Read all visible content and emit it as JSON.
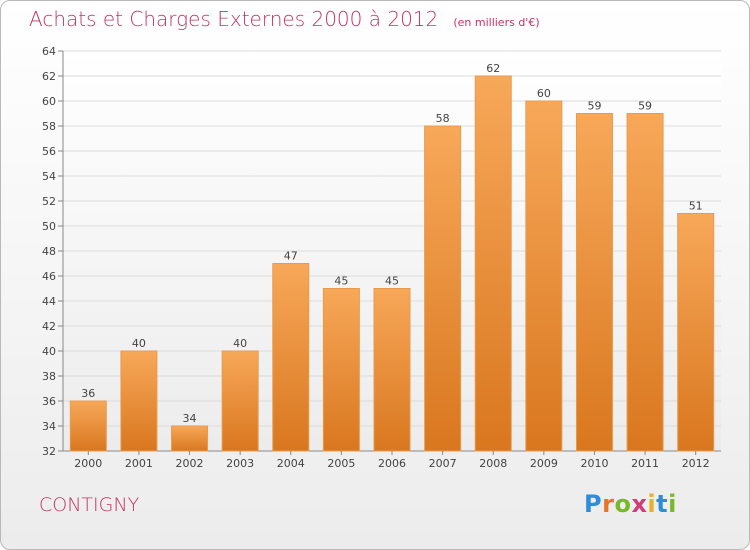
{
  "header": {
    "title": "Achats et Charges Externes 2000 à 2012",
    "subtitle": "(en milliers d'€)"
  },
  "footer": {
    "place": "CONTIGNY",
    "logo": "Proxiti"
  },
  "colors": {
    "bar_top": "#f7a859",
    "bar_bottom": "#d9771f",
    "title": "#c23466"
  },
  "chart_data": {
    "type": "bar",
    "categories": [
      "2000",
      "2001",
      "2002",
      "2003",
      "2004",
      "2005",
      "2006",
      "2007",
      "2008",
      "2009",
      "2010",
      "2011",
      "2012"
    ],
    "values": [
      36,
      40,
      34,
      40,
      47,
      45,
      45,
      58,
      62,
      60,
      59,
      59,
      51
    ],
    "ylim": [
      32,
      64
    ],
    "yticks": [
      32,
      34,
      36,
      38,
      40,
      42,
      44,
      46,
      48,
      50,
      52,
      54,
      56,
      58,
      60,
      62,
      64
    ],
    "grid": true,
    "xlabel": "",
    "ylabel": ""
  }
}
